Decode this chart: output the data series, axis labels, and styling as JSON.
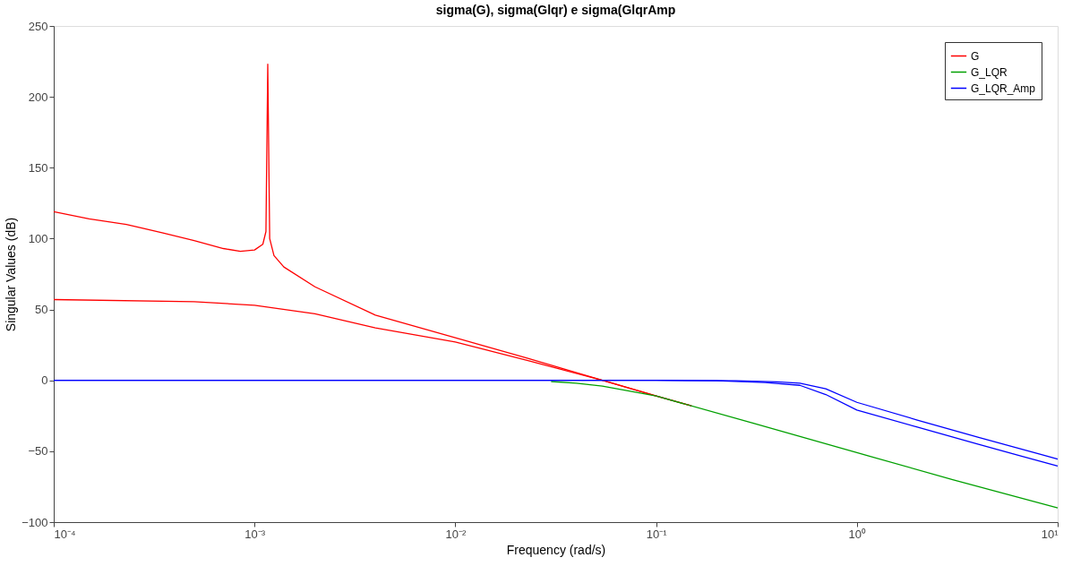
{
  "chart_data": {
    "type": "line",
    "title": "sigma(G), sigma(Glqr) e sigma(GlqrAmp",
    "xlabel": "Frequency (rad/s)",
    "ylabel": "Singular Values (dB)",
    "log": "x",
    "grid": false,
    "legend": "top right",
    "marker": "none",
    "line_style": "solid",
    "xlim": [
      0.0001,
      10
    ],
    "ylim": [
      -100,
      250
    ],
    "xticks": [
      {
        "value": 0.0001,
        "label": "10⁻⁴"
      },
      {
        "value": 0.001,
        "label": "10⁻³"
      },
      {
        "value": 0.01,
        "label": "10⁻²"
      },
      {
        "value": 0.1,
        "label": "10⁻¹"
      },
      {
        "value": 1,
        "label": "10⁰"
      },
      {
        "value": 10,
        "label": "10¹"
      }
    ],
    "yticks": [
      -100,
      -50,
      0,
      50,
      100,
      150,
      200,
      250
    ],
    "series": [
      {
        "name": "G",
        "color": "#ff0000",
        "x": [
          0.0001,
          0.00015,
          0.00023,
          0.00035,
          0.0005,
          0.0007,
          0.00085,
          0.001,
          0.0011,
          0.00114,
          0.001164,
          0.00119,
          0.00125,
          0.0014,
          0.002,
          0.004,
          0.01,
          0.023,
          0.054,
          0.1,
          0.15
        ],
        "values": [
          119,
          114,
          110,
          104,
          98.6,
          93,
          91,
          92,
          96,
          105,
          223,
          100,
          88,
          80,
          66,
          46,
          30,
          15.5,
          0,
          -11,
          -18
        ]
      },
      {
        "color": "#ff0000",
        "x": [
          0.0001,
          0.0005,
          0.001,
          0.002,
          0.004,
          0.01,
          0.023,
          0.054,
          0.1,
          0.15
        ],
        "values": [
          57,
          55.5,
          53,
          47,
          37,
          27,
          14,
          0,
          -11,
          -18
        ]
      },
      {
        "name": "G_LQR",
        "color": "#00a000",
        "x": [
          0.03,
          0.04,
          0.054,
          0.1,
          0.3,
          1,
          3,
          10
        ],
        "values": [
          -0.8,
          -2,
          -4,
          -11,
          -30,
          -51,
          -70,
          -90
        ]
      },
      {
        "name": "G_LQR_Amp",
        "color": "#0000ff",
        "x": [
          0.0001,
          0.001,
          0.01,
          0.1,
          0.25,
          0.4,
          0.52,
          0.7,
          1,
          2,
          4,
          10
        ],
        "values": [
          0,
          0,
          0,
          0,
          -0.3,
          -1,
          -2,
          -6,
          -15.5,
          -28,
          -40,
          -55.5
        ]
      },
      {
        "color": "#0000ff",
        "x": [
          0.0001,
          0.001,
          0.01,
          0.1,
          0.2,
          0.35,
          0.52,
          0.7,
          1,
          2,
          4,
          10
        ],
        "values": [
          0,
          0,
          0,
          0,
          -0.3,
          -1.5,
          -3.5,
          -10,
          -21,
          -33,
          -45,
          -60.5
        ]
      }
    ]
  }
}
